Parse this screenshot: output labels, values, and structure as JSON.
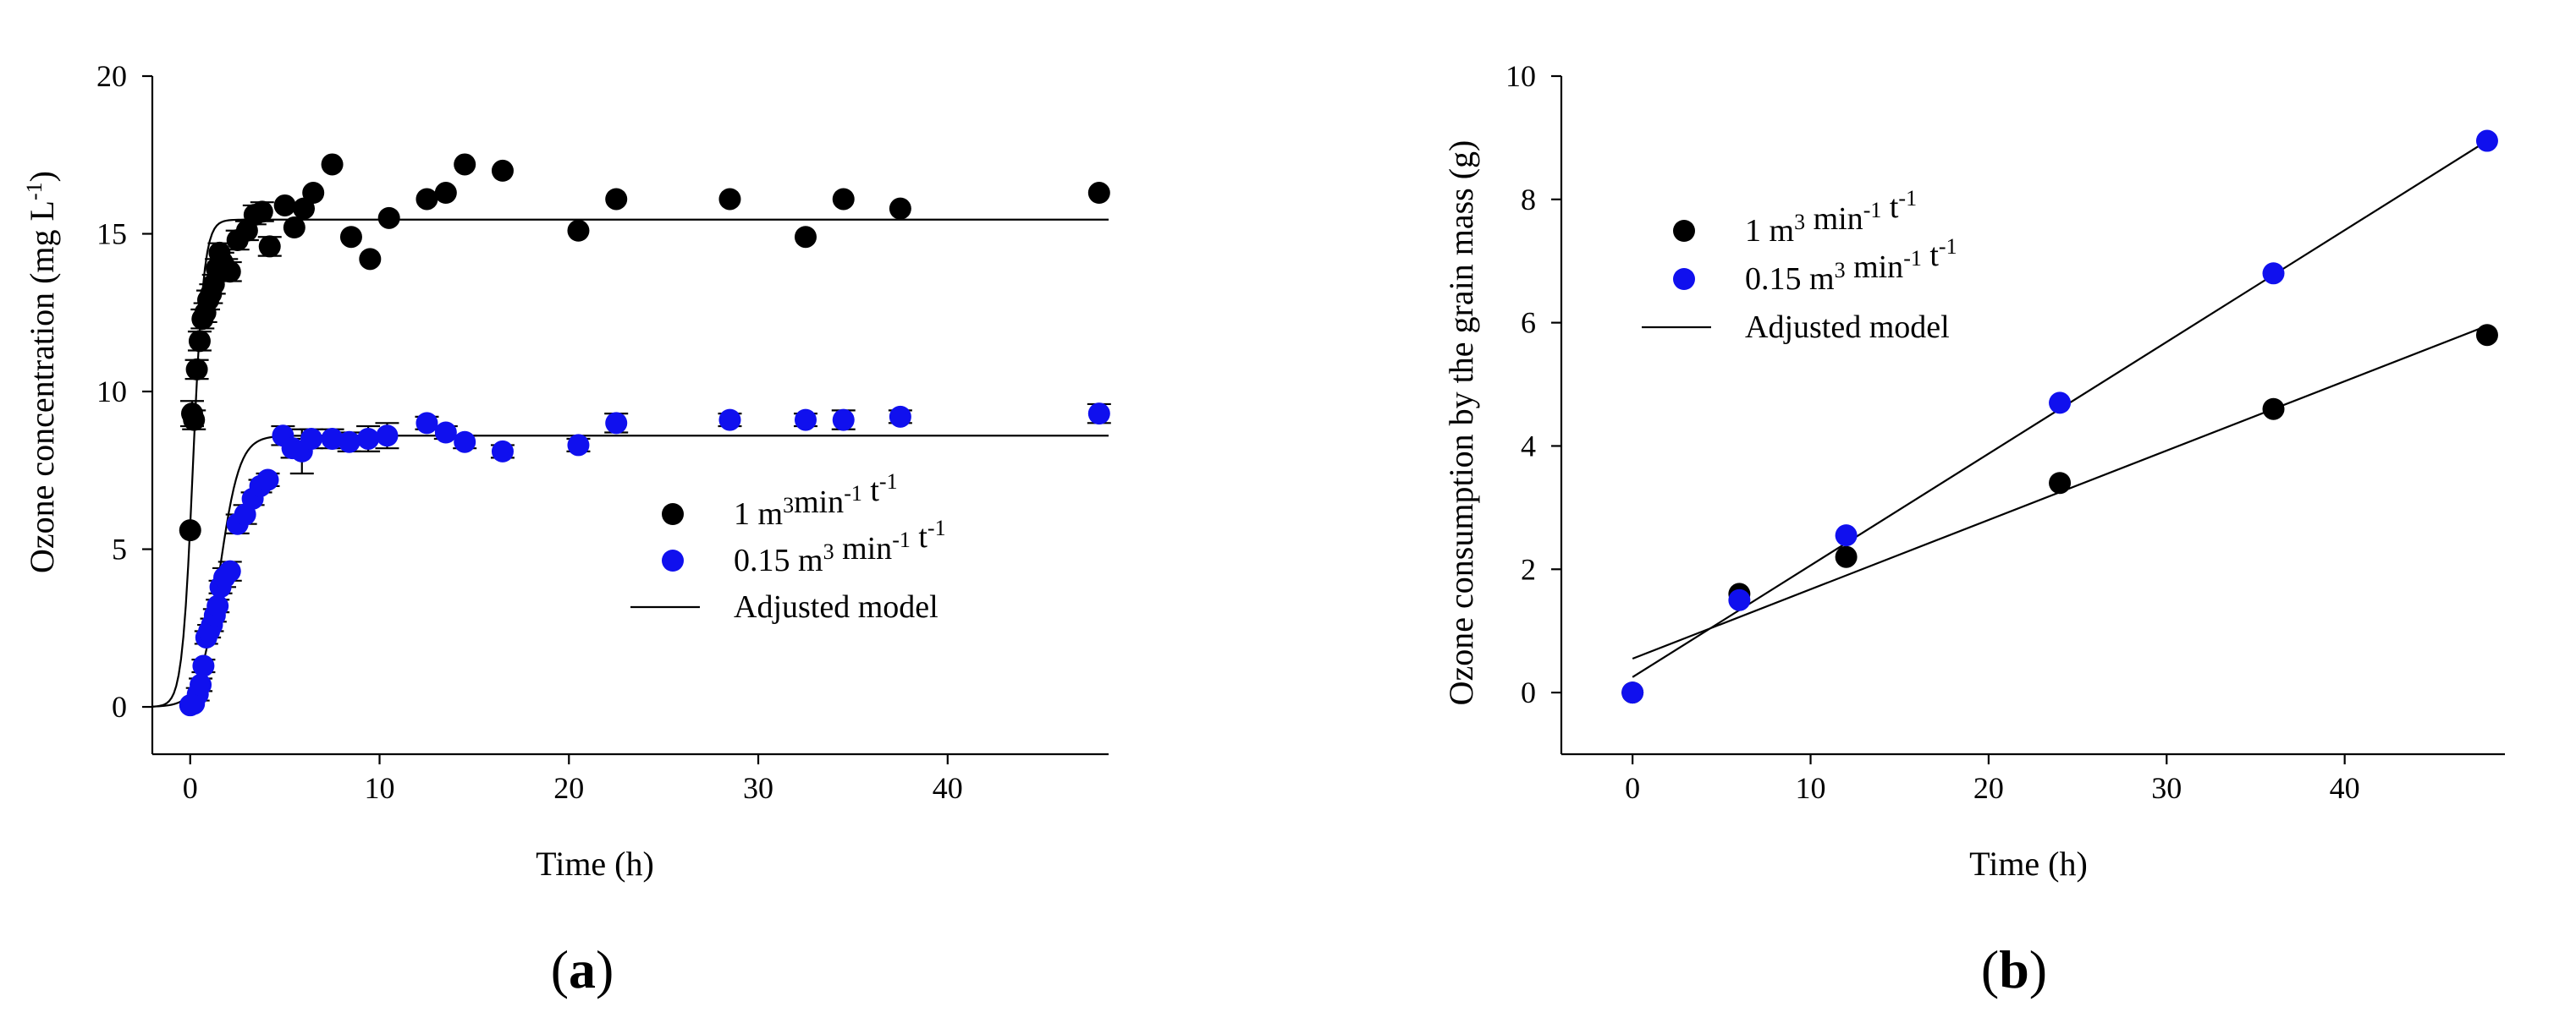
{
  "chart_data": [
    {
      "id": "a",
      "type": "scatter",
      "panel_label": "a",
      "xlabel": "Time (h)",
      "ylabel": "Ozone concentration (mg L",
      "ylabel_sup": "-1",
      "ylabel_end": ")",
      "xlim": [
        -2,
        48.5
      ],
      "ylim": [
        -1.5,
        20
      ],
      "xticks": [
        0,
        10,
        20,
        30,
        40
      ],
      "yticks": [
        0,
        5,
        10,
        15,
        20
      ],
      "grid": false,
      "legend": {
        "position": "center-right",
        "entries": [
          {
            "text": "1 m",
            "sup1": "3",
            "text2": "min",
            "sup2": "-1",
            "text3": " t",
            "sup3": "-1"
          },
          {
            "text": "0.15 m",
            "sup1": "3",
            "text2": " min",
            "sup2": "-1",
            "text3": " t",
            "sup3": "-1"
          },
          {
            "text": "Adjusted model"
          }
        ]
      },
      "series": [
        {
          "name": "1 m3min-1 t-1",
          "color": "#000000",
          "x": [
            0,
            0.1,
            0.2,
            0.35,
            0.5,
            0.65,
            0.8,
            0.95,
            1.1,
            1.25,
            1.4,
            1.55,
            1.7,
            1.9,
            2.1,
            2.5,
            3.0,
            3.4,
            3.8,
            4.2,
            5.0,
            5.5,
            6.0,
            6.5,
            7.5,
            8.5,
            9.5,
            10.5,
            12.5,
            13.5,
            14.5,
            16.5,
            20.5,
            22.5,
            28.5,
            32.5,
            34.5,
            37.5,
            48.0
          ],
          "y": [
            5.6,
            9.3,
            9.1,
            10.7,
            11.6,
            12.3,
            12.5,
            12.9,
            13.1,
            13.4,
            13.9,
            14.4,
            14.1,
            13.9,
            13.8,
            14.8,
            15.1,
            15.6,
            15.7,
            14.6,
            15.9,
            15.2,
            15.8,
            16.3,
            17.2,
            14.9,
            14.2,
            15.5,
            16.1,
            16.3,
            17.2,
            17.0,
            15.1,
            16.1,
            16.1,
            14.9,
            16.1,
            15.8,
            16.3
          ],
          "error": [
            0,
            0.4,
            0.3,
            0.3,
            0.3,
            0.3,
            0.3,
            0.3,
            0.3,
            0.3,
            0.3,
            0.3,
            0.3,
            0.3,
            0.3,
            0.3,
            0.3,
            0.3,
            0.3,
            0.3,
            0,
            0,
            0,
            0,
            0,
            0,
            0,
            0,
            0,
            0,
            0,
            0,
            0,
            0,
            0,
            0,
            0,
            0,
            0
          ]
        },
        {
          "name": "0.15 m3 min-1 t-1",
          "color": "#1010ee",
          "x": [
            0,
            0.2,
            0.4,
            0.55,
            0.7,
            0.85,
            1.0,
            1.15,
            1.3,
            1.45,
            1.6,
            1.8,
            2.1,
            2.5,
            2.9,
            3.3,
            3.7,
            4.1,
            4.9,
            5.4,
            5.9,
            6.4,
            7.5,
            8.4,
            9.4,
            10.4,
            12.5,
            13.5,
            14.5,
            16.5,
            20.5,
            22.5,
            28.5,
            32.5,
            34.5,
            37.5,
            48.0
          ],
          "y": [
            0.05,
            0.1,
            0.4,
            0.7,
            1.3,
            2.2,
            2.4,
            2.6,
            2.9,
            3.2,
            3.8,
            4.1,
            4.3,
            5.8,
            6.1,
            6.6,
            7.0,
            7.2,
            8.6,
            8.2,
            8.1,
            8.5,
            8.5,
            8.4,
            8.5,
            8.6,
            9.0,
            8.7,
            8.4,
            8.1,
            8.3,
            9.0,
            9.1,
            9.1,
            9.1,
            9.2,
            9.3
          ],
          "error": [
            0,
            0,
            0.2,
            0.2,
            0.2,
            0.2,
            0.2,
            0.2,
            0.2,
            0.2,
            0.2,
            0.3,
            0.3,
            0.3,
            0.3,
            0.2,
            0.2,
            0.2,
            0.3,
            0.3,
            0.7,
            0.3,
            0.3,
            0.3,
            0.4,
            0.4,
            0.2,
            0.2,
            0.2,
            0.2,
            0.2,
            0.3,
            0.2,
            0.2,
            0.3,
            0.2,
            0.3
          ]
        }
      ],
      "model": {
        "name": "Adjusted model",
        "curves": [
          {
            "type": "logistic",
            "asymptote": 15.45,
            "k": 3.5,
            "t0": 0.15
          },
          {
            "type": "logistic",
            "asymptote": 8.6,
            "k": 1.9,
            "t0": 1.55
          }
        ]
      }
    },
    {
      "id": "b",
      "type": "scatter",
      "panel_label": "b",
      "xlabel": "Time (h)",
      "ylabel": "Ozone consumption by the grain mass (g)",
      "xlim": [
        -4,
        49
      ],
      "ylim": [
        -1,
        10
      ],
      "xticks": [
        0,
        10,
        20,
        30,
        40
      ],
      "yticks": [
        0,
        2,
        4,
        6,
        8,
        10
      ],
      "grid": false,
      "legend": {
        "position": "top-left",
        "entries": [
          {
            "text": "1 m",
            "sup1": "3",
            "text2": " min",
            "sup2": "-1",
            "text3": " t",
            "sup3": "-1"
          },
          {
            "text": "0.15 m",
            "sup1": "3",
            "text2": " min",
            "sup2": "-1",
            "text3": " t",
            "sup3": "-1"
          },
          {
            "text": "Adjusted model"
          }
        ]
      },
      "series": [
        {
          "name": "1 m3 min-1 t-1",
          "color": "#000000",
          "x": [
            0,
            6,
            12,
            24,
            36,
            48
          ],
          "y": [
            0,
            1.6,
            2.2,
            3.4,
            4.6,
            5.8
          ]
        },
        {
          "name": "0.15 m3 min-1 t-1",
          "color": "#1010ee",
          "x": [
            0,
            6,
            12,
            24,
            36,
            48
          ],
          "y": [
            0,
            1.5,
            2.55,
            4.7,
            6.8,
            8.95
          ]
        }
      ],
      "model": {
        "name": "Adjusted model",
        "lines": [
          {
            "x": [
              0,
              48
            ],
            "y": [
              0.55,
              5.95
            ]
          },
          {
            "x": [
              0,
              48
            ],
            "y": [
              0.25,
              8.95
            ]
          }
        ]
      }
    }
  ]
}
